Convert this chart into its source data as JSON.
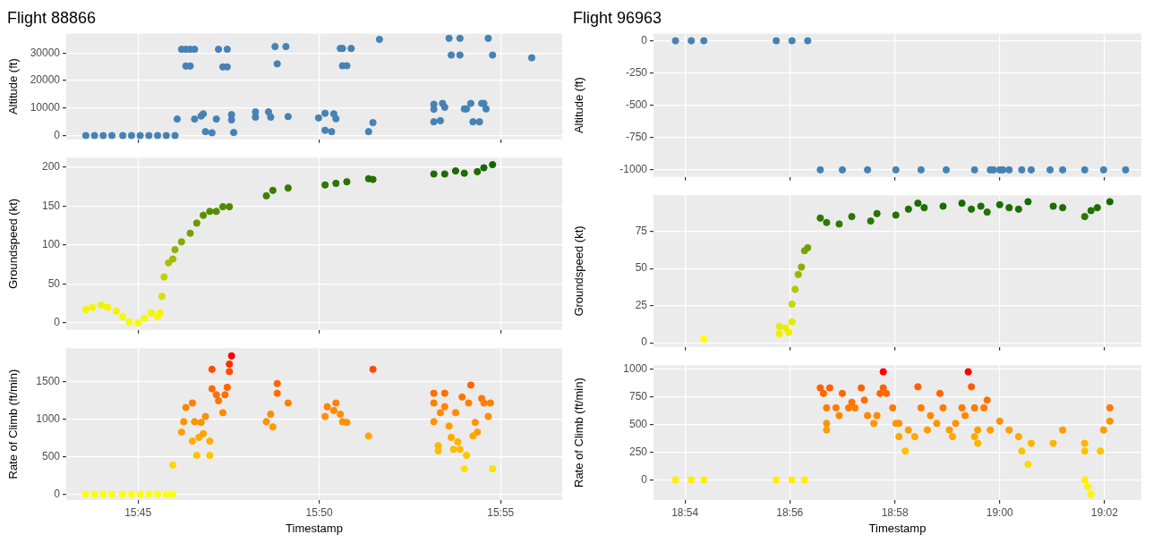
{
  "chart_data": [
    {
      "type": "scatter",
      "title": "Flight 88866",
      "ylabel": "Altitude (ft)",
      "xlim": [
        15.717,
        15.945
      ],
      "xticks": [
        {
          "value": 15.75,
          "label": null
        },
        {
          "value": 15.8333,
          "label": null
        },
        {
          "value": 15.9167,
          "label": null
        }
      ],
      "ylim": [
        -1400,
        37100
      ],
      "yticks": [
        0,
        10000,
        20000,
        30000
      ],
      "grid": true,
      "marker": "circle",
      "tick_labels": "y",
      "series": [
        {
          "color": "#4682b4",
          "x": [
            15.726,
            15.73,
            15.734,
            15.738,
            15.743,
            15.747,
            15.751,
            15.755,
            15.759,
            15.763,
            15.767,
            15.768,
            15.77,
            15.772,
            15.772,
            15.774,
            15.774,
            15.776,
            15.776,
            15.779,
            15.78,
            15.781,
            15.784,
            15.786,
            15.787,
            15.789,
            15.791,
            15.791,
            15.793,
            15.793,
            15.794,
            15.804,
            15.804,
            15.81,
            15.811,
            15.813,
            15.818,
            15.814,
            15.819,
            15.833,
            15.836,
            15.836,
            15.839,
            15.84,
            15.841,
            15.843,
            15.844,
            15.844,
            15.846,
            15.848,
            15.856,
            15.858,
            15.861,
            15.886,
            15.886,
            15.886,
            15.889,
            15.89,
            15.891,
            15.893,
            15.898,
            15.894,
            15.898,
            15.9,
            15.901,
            15.903,
            15.904,
            15.907,
            15.908,
            15.909,
            15.91,
            15.911,
            15.913,
            15.931
          ],
          "values": [
            0,
            0,
            0,
            0,
            0,
            0,
            0,
            0,
            0,
            0,
            0,
            6000,
            31400,
            31400,
            25300,
            25300,
            31400,
            31400,
            6000,
            7100,
            7900,
            1400,
            1000,
            6000,
            31400,
            25000,
            25000,
            31400,
            5700,
            7600,
            1100,
            6700,
            8600,
            8600,
            6700,
            32400,
            32400,
            26100,
            6900,
            6400,
            8100,
            1900,
            1400,
            7900,
            6100,
            31700,
            31700,
            25400,
            25400,
            31700,
            1400,
            4700,
            35000,
            9600,
            11400,
            5000,
            5400,
            11700,
            10300,
            35400,
            35400,
            29300,
            29300,
            9700,
            9700,
            11700,
            5000,
            5000,
            11700,
            11700,
            9700,
            35400,
            29300,
            28300
          ]
        }
      ]
    },
    {
      "type": "scatter",
      "ylabel": "Groundspeed (kt)",
      "xlim": [
        15.717,
        15.945
      ],
      "xticks": [
        {
          "value": 15.75,
          "label": null
        },
        {
          "value": 15.8333,
          "label": null
        },
        {
          "value": 15.9167,
          "label": null
        }
      ],
      "ylim": [
        -9,
        212
      ],
      "yticks": [
        0,
        50,
        100,
        150,
        200
      ],
      "grid": true,
      "marker": "circle",
      "tick_labels": "y",
      "series": [
        {
          "x": [
            15.726,
            15.729,
            15.733,
            15.736,
            15.74,
            15.743,
            15.746,
            15.75,
            15.753,
            15.756,
            15.759,
            15.76,
            15.761,
            15.762,
            15.764,
            15.766,
            15.767,
            15.77,
            15.774,
            15.777,
            15.78,
            15.783,
            15.786,
            15.789,
            15.792,
            15.809,
            15.812,
            15.819,
            15.836,
            15.841,
            15.846,
            15.856,
            15.858,
            15.886,
            15.891,
            15.896,
            15.9,
            15.906,
            15.909,
            15.913
          ],
          "values": [
            17,
            20,
            23,
            20,
            15,
            8,
            1,
            0,
            6,
            13,
            8,
            13,
            34,
            59,
            77,
            82,
            94,
            104,
            115,
            128,
            138,
            143,
            143,
            149,
            149,
            163,
            170,
            173,
            177,
            179,
            181,
            185,
            184,
            191,
            191,
            195,
            192,
            194,
            199,
            203
          ],
          "colors": [
            "#f5f500",
            "#f5f500",
            "#f2f200",
            "#f5f500",
            "#f5f500",
            "#f8f800",
            "#fafa00",
            "#fafa00",
            "#f8f800",
            "#f5f500",
            "#f8f800",
            "#f5f500",
            "#d8e000",
            "#c0d000",
            "#a8c000",
            "#a0bc00",
            "#90b200",
            "#84aa00",
            "#76a000",
            "#6a9800",
            "#5e9000",
            "#588c00",
            "#588c00",
            "#528800",
            "#528800",
            "#408000",
            "#3a7c00",
            "#387a00",
            "#307600",
            "#2e7400",
            "#2c7200",
            "#267000",
            "#267000",
            "#1e6c00",
            "#1e6c00",
            "#1a6a00",
            "#1e6c00",
            "#1c6a00",
            "#166800",
            "#126600"
          ]
        }
      ]
    },
    {
      "type": "scatter",
      "ylabel": "Rate of Climb (ft/min)",
      "xlabel": "Timestamp",
      "xlim": [
        15.717,
        15.945
      ],
      "xticks": [
        {
          "value": 15.75,
          "label": "15:45"
        },
        {
          "value": 15.8333,
          "label": "15:50"
        },
        {
          "value": 15.9167,
          "label": "15:55"
        }
      ],
      "ylim": [
        -78,
        1953
      ],
      "yticks": [
        0,
        500,
        1000,
        1500
      ],
      "grid": true,
      "marker": "circle",
      "series": [
        {
          "x": [
            15.726,
            15.73,
            15.734,
            15.738,
            15.743,
            15.747,
            15.751,
            15.755,
            15.759,
            15.763,
            15.766,
            15.766,
            15.77,
            15.771,
            15.772,
            15.775,
            15.776,
            15.775,
            15.777,
            15.778,
            15.779,
            15.78,
            15.781,
            15.783,
            15.783,
            15.784,
            15.784,
            15.786,
            15.787,
            15.789,
            15.79,
            15.791,
            15.792,
            15.793,
            15.792,
            15.809,
            15.811,
            15.812,
            15.814,
            15.814,
            15.819,
            15.836,
            15.837,
            15.84,
            15.841,
            15.843,
            15.844,
            15.846,
            15.856,
            15.858,
            15.886,
            15.886,
            15.886,
            15.888,
            15.888,
            15.889,
            15.891,
            15.891,
            15.893,
            15.894,
            15.895,
            15.896,
            15.897,
            15.898,
            15.899,
            15.9,
            15.901,
            15.902,
            15.903,
            15.904,
            15.905,
            15.906,
            15.908,
            15.909,
            15.911,
            15.912,
            15.913
          ],
          "values": [
            0,
            0,
            0,
            0,
            0,
            0,
            0,
            0,
            0,
            0,
            0,
            390,
            830,
            970,
            1160,
            1220,
            970,
            710,
            520,
            760,
            960,
            810,
            1040,
            520,
            710,
            1670,
            1410,
            1330,
            1250,
            1090,
            1330,
            1430,
            1640,
            1850,
            1740,
            970,
            1070,
            900,
            1480,
            1350,
            1220,
            1040,
            1170,
            1120,
            1220,
            1070,
            970,
            960,
            780,
            1670,
            1350,
            1220,
            970,
            650,
            580,
            1090,
            1350,
            1170,
            910,
            760,
            600,
            1090,
            700,
            600,
            1300,
            340,
            520,
            1220,
            1460,
            780,
            960,
            830,
            1280,
            1220,
            1040,
            1220,
            340
          ],
          "colors": [
            "#ffff00",
            "#ffff00",
            "#ffff00",
            "#ffff00",
            "#ffff00",
            "#ffff00",
            "#ffff00",
            "#ffff00",
            "#ffff00",
            "#ffff00",
            "#ffff00",
            "#ffd800",
            "#ffa000",
            "#ff9400",
            "#ff8400",
            "#ff8000",
            "#ff9400",
            "#ffb000",
            "#ffc400",
            "#ffaa00",
            "#ff9400",
            "#ffa400",
            "#ff9000",
            "#ffc400",
            "#ffb000",
            "#ff4a00",
            "#ff6a00",
            "#ff7000",
            "#ff7600",
            "#ff8a00",
            "#ff7000",
            "#ff6600",
            "#ff4c00",
            "#ff0000",
            "#ff3000",
            "#ff9400",
            "#ff8c00",
            "#ff9c00",
            "#ff6200",
            "#ff6e00",
            "#ff8000",
            "#ff9000",
            "#ff8400",
            "#ff8800",
            "#ff8000",
            "#ff8c00",
            "#ff9400",
            "#ff9400",
            "#ffa800",
            "#ff4a00",
            "#ff6e00",
            "#ff8000",
            "#ff9400",
            "#ffb800",
            "#ffbe00",
            "#ff8a00",
            "#ff6e00",
            "#ff8400",
            "#ff9c00",
            "#ffaa00",
            "#ffbc00",
            "#ff8a00",
            "#ffb200",
            "#ffbc00",
            "#ff7400",
            "#ffe000",
            "#ffc400",
            "#ff8000",
            "#ff6400",
            "#ffa800",
            "#ff9400",
            "#ffa000",
            "#ff7800",
            "#ff8000",
            "#ff9000",
            "#ff8000",
            "#ffe000"
          ]
        }
      ]
    },
    {
      "type": "scatter",
      "title": "Flight 96963",
      "ylabel": "Altitude (ft)",
      "xlim": [
        18.89,
        19.045
      ],
      "xticks": [
        {
          "value": 18.9,
          "label": null
        },
        {
          "value": 18.9333,
          "label": null
        },
        {
          "value": 18.9667,
          "label": null
        },
        {
          "value": 19,
          "label": null
        },
        {
          "value": 19.0333,
          "label": null
        }
      ],
      "ylim": [
        -1055,
        55
      ],
      "yticks": [
        -1000,
        -750,
        -500,
        -250,
        0
      ],
      "grid": true,
      "marker": "circle",
      "tick_labels": "y",
      "series": [
        {
          "color": "#4682b4",
          "x": [
            18.897,
            18.902,
            18.906,
            18.929,
            18.934,
            18.939,
            18.943,
            18.95,
            18.958,
            18.967,
            18.975,
            18.983,
            18.992,
            18.997,
            18.998,
            19.0,
            19.001,
            19.003,
            19.007,
            19.01,
            19.016,
            19.02,
            19.027,
            19.033,
            19.04
          ],
          "values": [
            0,
            0,
            0,
            0,
            0,
            0,
            -1000,
            -1000,
            -1000,
            -1000,
            -1000,
            -1000,
            -1000,
            -1000,
            -1000,
            -1000,
            -1000,
            -1000,
            -1000,
            -1000,
            -1000,
            -1000,
            -1000,
            -1000,
            -1000
          ]
        }
      ]
    },
    {
      "type": "scatter",
      "ylabel": "Groundspeed (kt)",
      "xlim": [
        18.89,
        19.045
      ],
      "xticks": [
        {
          "value": 18.9,
          "label": null
        },
        {
          "value": 18.9333,
          "label": null
        },
        {
          "value": 18.9667,
          "label": null
        },
        {
          "value": 19,
          "label": null
        },
        {
          "value": 19.0333,
          "label": null
        }
      ],
      "ylim": [
        -2.8,
        99.4
      ],
      "yticks": [
        0,
        25,
        50,
        75
      ],
      "grid": true,
      "marker": "circle",
      "tick_labels": "y",
      "series": [
        {
          "x": [
            18.906,
            18.93,
            18.93,
            18.932,
            18.933,
            18.934,
            18.934,
            18.935,
            18.936,
            18.937,
            18.938,
            18.939,
            18.943,
            18.945,
            18.949,
            18.953,
            18.959,
            18.961,
            18.967,
            18.971,
            18.974,
            18.976,
            18.982,
            18.988,
            18.991,
            18.994,
            18.996,
            19.0,
            19.003,
            19.006,
            19.009,
            19.017,
            19.02,
            19.027,
            19.029,
            19.031,
            19.035
          ],
          "values": [
            2.6,
            6,
            11,
            10,
            7,
            14,
            26,
            36,
            46,
            51,
            62,
            64,
            84,
            81,
            80,
            85,
            82,
            87,
            86,
            90,
            94,
            91,
            92,
            94,
            90,
            92,
            88,
            93,
            91,
            90,
            95,
            92,
            91,
            85,
            89,
            91,
            95
          ],
          "colors": [
            "#ffff00",
            "#f0f000",
            "#e8ec00",
            "#eaee00",
            "#eef000",
            "#e4ea00",
            "#c8d800",
            "#b0c800",
            "#98b800",
            "#8cb000",
            "#76a400",
            "#72a000",
            "#2a7800",
            "#2e7a00",
            "#307c00",
            "#287600",
            "#2c7800",
            "#247400",
            "#267400",
            "#1e7000",
            "#186c00",
            "#1c6e00",
            "#1c6e00",
            "#186c00",
            "#1e7000",
            "#1c6e00",
            "#227200",
            "#1a6e00",
            "#1c6e00",
            "#1e7000",
            "#166a00",
            "#1c6e00",
            "#1c6e00",
            "#287600",
            "#207200",
            "#1c6e00",
            "#166a00"
          ]
        }
      ]
    },
    {
      "type": "scatter",
      "ylabel": "Rate of Climb (ft/min)",
      "xlabel": "Timestamp",
      "xlim": [
        18.89,
        19.045
      ],
      "xticks": [
        {
          "value": 18.9,
          "label": "18:54"
        },
        {
          "value": 18.9333,
          "label": "18:56"
        },
        {
          "value": 18.9667,
          "label": "18:58"
        },
        {
          "value": 19,
          "label": "19:00"
        },
        {
          "value": 19.0333,
          "label": "19:02"
        }
      ],
      "ylim": [
        -182,
        1035
      ],
      "yticks": [
        0,
        250,
        500,
        750,
        1000
      ],
      "grid": true,
      "marker": "circle",
      "series": [
        {
          "x": [
            18.897,
            18.902,
            18.906,
            18.929,
            18.934,
            18.938,
            18.943,
            18.944,
            18.945,
            18.945,
            18.945,
            18.946,
            18.948,
            18.949,
            18.95,
            18.952,
            18.953,
            18.954,
            18.956,
            18.957,
            18.958,
            18.96,
            18.961,
            18.962,
            18.963,
            18.963,
            18.964,
            18.966,
            18.967,
            18.968,
            18.968,
            18.97,
            18.971,
            18.973,
            18.974,
            18.975,
            18.977,
            18.978,
            18.98,
            18.981,
            18.982,
            18.984,
            18.985,
            18.986,
            18.988,
            18.989,
            18.99,
            18.991,
            18.992,
            18.992,
            18.993,
            18.993,
            18.995,
            18.996,
            18.997,
            19.0,
            19.003,
            19.006,
            19.007,
            19.009,
            19.01,
            19.017,
            19.02,
            19.027,
            19.027,
            19.027,
            19.028,
            19.029,
            19.032,
            19.033,
            19.035,
            19.035
          ],
          "values": [
            0,
            0,
            0,
            0,
            0,
            0,
            830,
            780,
            650,
            510,
            450,
            830,
            650,
            580,
            780,
            650,
            700,
            650,
            830,
            720,
            580,
            510,
            580,
            780,
            975,
            830,
            780,
            650,
            510,
            510,
            390,
            260,
            450,
            390,
            840,
            650,
            450,
            580,
            510,
            780,
            650,
            450,
            390,
            510,
            650,
            580,
            975,
            840,
            650,
            390,
            330,
            450,
            650,
            720,
            450,
            530,
            450,
            390,
            260,
            140,
            330,
            330,
            450,
            330,
            260,
            0,
            -63,
            -130,
            260,
            450,
            530,
            650
          ],
          "colors": [
            "#ffee00",
            "#ffee00",
            "#ffee00",
            "#ffee00",
            "#ffee00",
            "#ffee00",
            "#ff6000",
            "#ff6600",
            "#ff7c00",
            "#ff9400",
            "#ff9e00",
            "#ff6000",
            "#ff7c00",
            "#ff8800",
            "#ff6600",
            "#ff7c00",
            "#ff7400",
            "#ff7c00",
            "#ff6000",
            "#ff7000",
            "#ff8800",
            "#ff9400",
            "#ff8800",
            "#ff6600",
            "#ff0000",
            "#ff6000",
            "#ff6600",
            "#ff7c00",
            "#ff9400",
            "#ff9400",
            "#ffa800",
            "#ffc000",
            "#ff9e00",
            "#ffa800",
            "#ff5e00",
            "#ff7c00",
            "#ff9e00",
            "#ff8800",
            "#ff9400",
            "#ff6600",
            "#ff7c00",
            "#ff9e00",
            "#ffa800",
            "#ff9400",
            "#ff7c00",
            "#ff8800",
            "#ff0000",
            "#ff5e00",
            "#ff7c00",
            "#ffa800",
            "#ffb400",
            "#ff9e00",
            "#ff7c00",
            "#ff7000",
            "#ff9e00",
            "#ff9200",
            "#ff9e00",
            "#ffa800",
            "#ffc000",
            "#ffd800",
            "#ffb400",
            "#ffb400",
            "#ff9e00",
            "#ffb400",
            "#ffc000",
            "#ffee00",
            "#fff200",
            "#fff600",
            "#ffc000",
            "#ff9e00",
            "#ff9200",
            "#ff7c00"
          ]
        }
      ]
    }
  ]
}
